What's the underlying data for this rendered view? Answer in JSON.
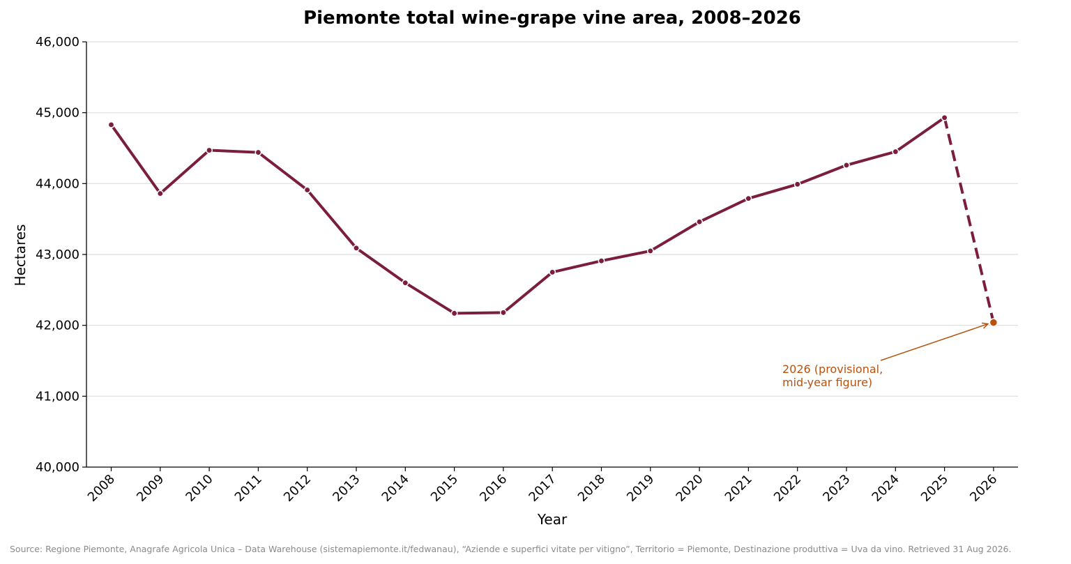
{
  "chart_data": {
    "type": "line",
    "title": "Piemonte total wine-grape vine area, 2008–2026",
    "xlabel": "Year",
    "ylabel": "Hectares",
    "ylim": [
      40000,
      46000
    ],
    "yticks": [
      40000,
      41000,
      42000,
      43000,
      44000,
      45000,
      46000
    ],
    "ytick_labels": [
      "40,000",
      "41,000",
      "42,000",
      "43,000",
      "44,000",
      "45,000",
      "46,000"
    ],
    "x": [
      "2008",
      "2009",
      "2010",
      "2011",
      "2012",
      "2013",
      "2014",
      "2015",
      "2016",
      "2017",
      "2018",
      "2019",
      "2020",
      "2021",
      "2022",
      "2023",
      "2024",
      "2025",
      "2026"
    ],
    "series": [
      {
        "values": [
          44830,
          43860,
          44470,
          44440,
          43910,
          43090,
          42600,
          42170,
          42180,
          42750,
          42910,
          43050,
          43460,
          43790,
          43990,
          44260,
          44450,
          44930,
          42040
        ],
        "color": "#7b1e3c",
        "provisional_last_point": true
      }
    ],
    "grid": "horizontal",
    "annotations": [
      {
        "x": "2026",
        "y": 42040,
        "line1": "2026 (provisional,",
        "line2": "mid-year figure)",
        "color": "#b5530f"
      }
    ],
    "source": "Source: Regione Piemonte, Anagrafe Agricola Unica – Data Warehouse (sistemapiemonte.it/fedwanau), “Aziende e superfici vitate per vitigno”, Territorio = Piemonte, Destinazione produttiva = Uva da vino. Retrieved 31 Aug 2026."
  }
}
